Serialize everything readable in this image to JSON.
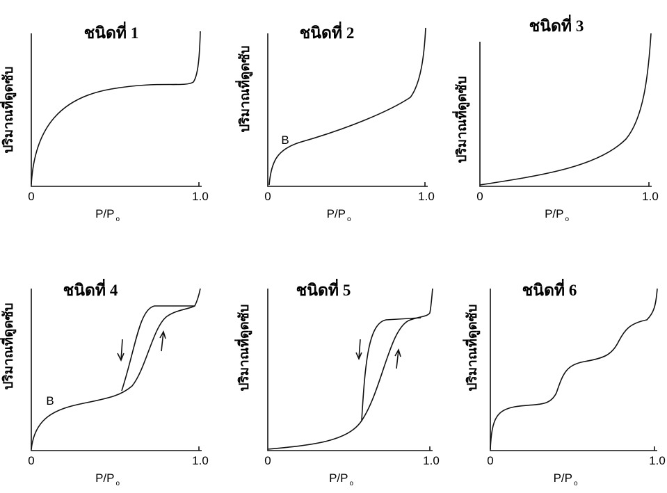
{
  "panels": [
    {
      "title": "ชนิดที่ 1",
      "y_label": "ปริมาณที่ดูดซับ",
      "x_label": "P/P",
      "x_sub": "o",
      "origin": "0",
      "x_end": "1.0"
    },
    {
      "title": "ชนิดที่ 2",
      "y_label": "ปริมาณที่ดูดซับ",
      "x_label": "P/P",
      "x_sub": "o",
      "origin": "0",
      "x_end": "1.0",
      "point": "B"
    },
    {
      "title": "ชนิดที่ 3",
      "y_label": "ปริมาณที่ดูดซับ",
      "x_label": "P/P",
      "x_sub": "o",
      "origin": "0",
      "x_end": "1.0"
    },
    {
      "title": "ชนิดที่ 4",
      "y_label": "ปริมาณที่ดูดซับ",
      "x_label": "P/P",
      "x_sub": "o",
      "origin": "0",
      "x_end": "1.0",
      "point": "B"
    },
    {
      "title": "ชนิดที่ 5",
      "y_label": "ปริมาณที่ดูดซับ",
      "x_label": "P/P",
      "x_sub": "o",
      "origin": "0",
      "x_end": "1.0"
    },
    {
      "title": "ชนิดที่ 6",
      "y_label": "ปริมาณที่ดูดซับ",
      "x_label": "P/P",
      "x_sub": "o",
      "origin": "0",
      "x_end": "1.0"
    }
  ]
}
